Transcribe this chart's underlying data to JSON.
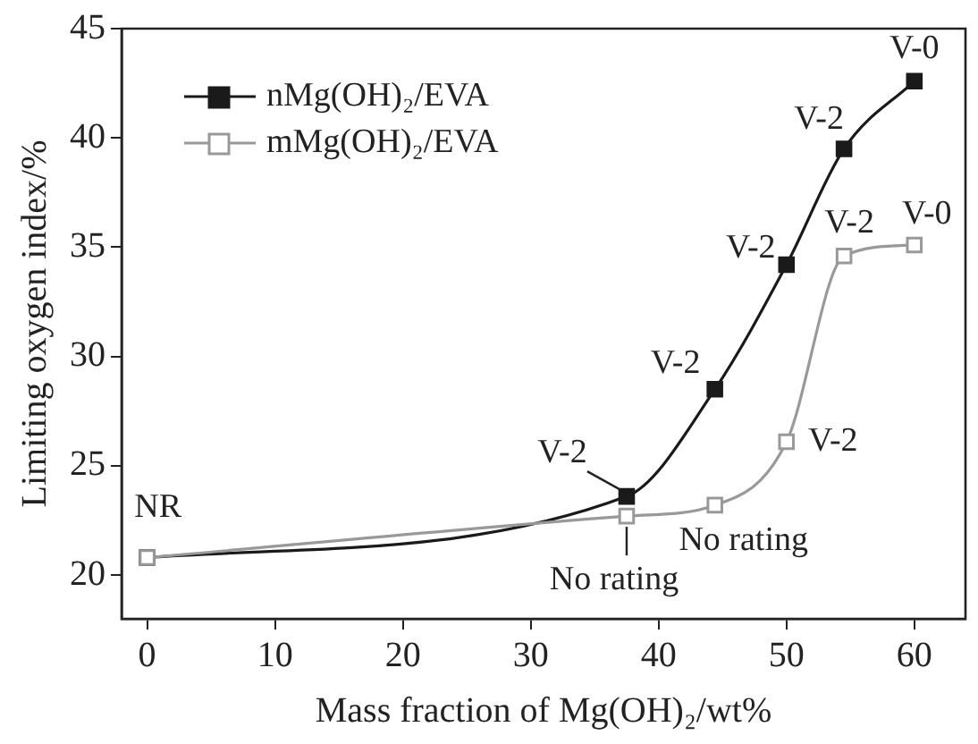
{
  "chart_data": {
    "type": "line",
    "xlabel": "Mass fraction of Mg(OH)₂/wt%",
    "ylabel": "Limiting oxygen index/%",
    "xlim": [
      -2,
      64
    ],
    "xticks": [
      0,
      10,
      20,
      30,
      40,
      50,
      60
    ],
    "ylim": [
      18,
      45
    ],
    "yticks": [
      20,
      25,
      30,
      35,
      40,
      45
    ],
    "grid": false,
    "legend": "top left",
    "marker": "square",
    "line_style": "solid",
    "series": [
      {
        "name": "nMg(OH)₂/EVA",
        "color": "#1a1a1a",
        "x": [
          0,
          37.5,
          44.4,
          50,
          54.5,
          60
        ],
        "values": [
          20.8,
          23.6,
          28.5,
          34.2,
          39.5,
          42.6
        ]
      },
      {
        "name": "mMg(OH)₂/EVA",
        "color": "#999999",
        "x": [
          0,
          37.5,
          44.4,
          50,
          54.5,
          60
        ],
        "values": [
          20.8,
          22.7,
          23.2,
          26.1,
          34.6,
          35.1
        ]
      }
    ],
    "annotations": [
      {
        "text": "NR",
        "x": 0,
        "y": 20.8
      },
      {
        "text": "V-2",
        "x": 37.5,
        "y": 23.6
      },
      {
        "text": "No rating",
        "x": 37.5,
        "y": 22.7
      },
      {
        "text": "V-2",
        "x": 44.4,
        "y": 28.5
      },
      {
        "text": "No rating",
        "x": 44.4,
        "y": 23.2
      },
      {
        "text": "V-2",
        "x": 50,
        "y": 34.2
      },
      {
        "text": "V-2",
        "x": 50,
        "y": 26.1
      },
      {
        "text": "V-2",
        "x": 54.5,
        "y": 39.5
      },
      {
        "text": "V-2",
        "x": 54.5,
        "y": 34.6
      },
      {
        "text": "V-0",
        "x": 60,
        "y": 42.6
      },
      {
        "text": "V-0",
        "x": 60,
        "y": 35.1
      }
    ]
  }
}
